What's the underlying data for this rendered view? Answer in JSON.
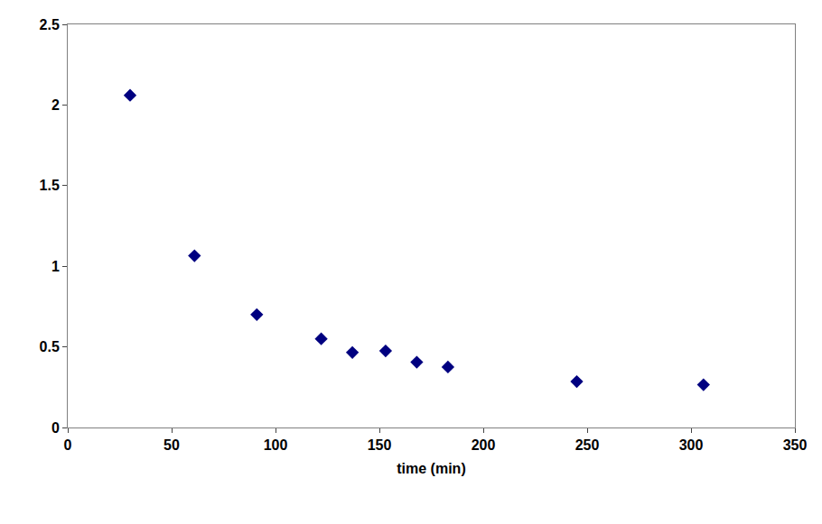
{
  "chart_data": {
    "type": "scatter",
    "x_label": "time (min)",
    "x": [
      30,
      61,
      91,
      122,
      137,
      153,
      168,
      183,
      245,
      306
    ],
    "values": [
      2.06,
      1.065,
      0.7,
      0.55,
      0.465,
      0.475,
      0.405,
      0.375,
      0.285,
      0.265
    ],
    "color": "#000080",
    "marker": "diamond",
    "xlim": [
      0,
      350
    ],
    "xticks": [
      0,
      50,
      100,
      150,
      200,
      250,
      300,
      350
    ],
    "ylim": [
      0,
      2.5
    ],
    "yticks": [
      0,
      0.5,
      1,
      1.5,
      2,
      2.5
    ],
    "grid": false
  }
}
